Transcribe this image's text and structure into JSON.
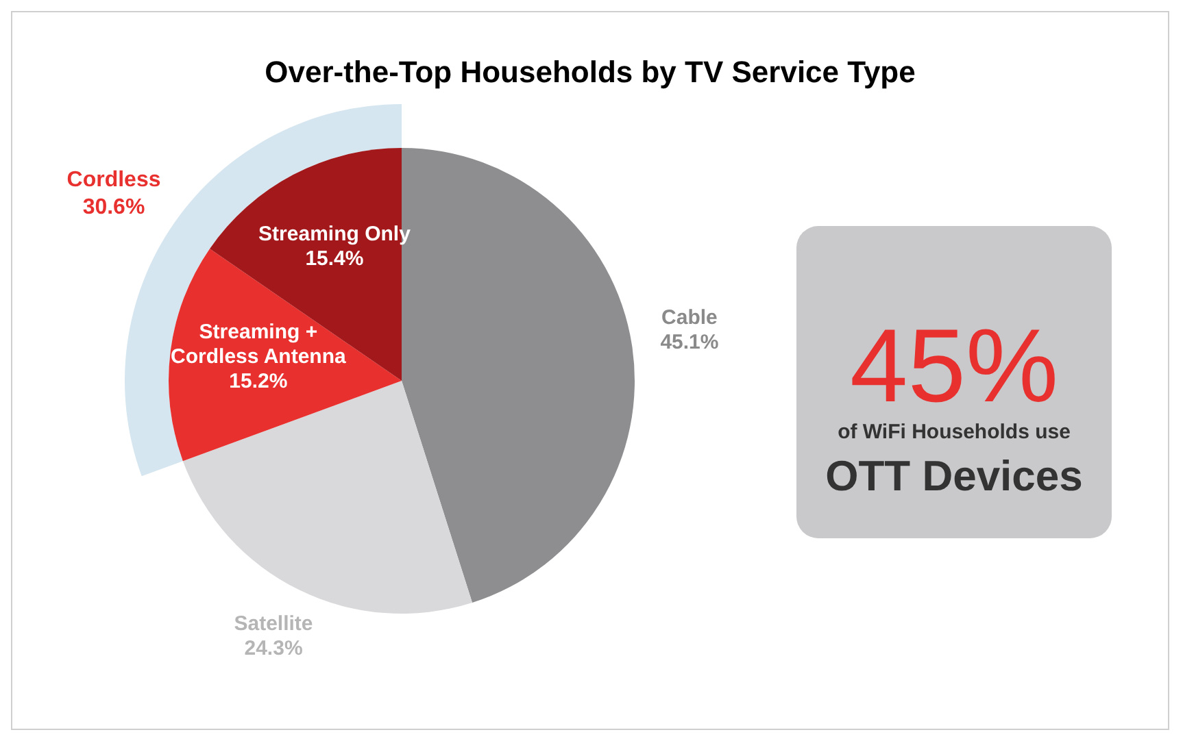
{
  "chart_data": {
    "type": "pie",
    "title": "Over-the-Top Households by TV Service Type",
    "categories": [
      "Cable",
      "Satellite",
      "Streaming + Cordless Antenna",
      "Streaming Only"
    ],
    "values": [
      45.1,
      24.3,
      15.2,
      15.4
    ],
    "colors": [
      "#8e8e90",
      "#d9d9db",
      "#e8312f",
      "#a3191b"
    ],
    "value_labels": [
      "45.1%",
      "24.3%",
      "15.2%",
      "15.4%"
    ],
    "annotations": [
      "Cordless 30.6%",
      "45%",
      "of WiFi Households use",
      "OTT Devices"
    ]
  }
}
